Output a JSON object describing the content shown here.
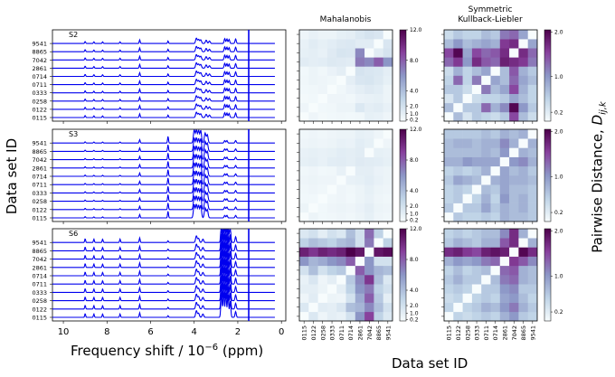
{
  "chart_data": {
    "type": "heatmap",
    "labels": {
      "ylabel_left": "Data set ID",
      "xlabel_bottom_left": "Frequency shift / 10",
      "xlabel_exp": "−6",
      "xlabel_unit": " (ppm)",
      "xlabel_bottom_right": "Data set ID",
      "ylabel_right_main": "Pairwise Distance, ",
      "ylabel_right_sym": "D",
      "ylabel_right_sub": "ij,k",
      "col_title_1": "Mahalanobis",
      "col_title_2a": "Symmetric",
      "col_title_2b": "Kullback-Liebler"
    },
    "dataset_ids": [
      "0115",
      "0122",
      "0258",
      "0333",
      "0711",
      "0714",
      "2861",
      "7042",
      "8865",
      "9541"
    ],
    "spectra": {
      "xlim": [
        10.5,
        -0.2
      ],
      "xticks": [
        10,
        8,
        6,
        4,
        2,
        0
      ],
      "panels": [
        {
          "name": "S2",
          "marker": 1.5,
          "peaks": [
            {
              "c": 9.0,
              "w": 0.03,
              "h": 0.25
            },
            {
              "c": 8.6,
              "w": 0.03,
              "h": 0.2
            },
            {
              "c": 8.2,
              "w": 0.03,
              "h": 0.2
            },
            {
              "c": 7.4,
              "w": 0.03,
              "h": 0.2
            },
            {
              "c": 6.5,
              "w": 0.03,
              "h": 0.45
            },
            {
              "c": 5.2,
              "w": 0.03,
              "h": 0.3
            },
            {
              "c": 3.9,
              "w": 0.05,
              "h": 0.65
            },
            {
              "c": 3.8,
              "w": 0.05,
              "h": 0.5
            },
            {
              "c": 3.7,
              "w": 0.05,
              "h": 0.45
            },
            {
              "c": 3.45,
              "w": 0.05,
              "h": 0.4
            },
            {
              "c": 3.3,
              "w": 0.05,
              "h": 0.3
            },
            {
              "c": 2.6,
              "w": 0.04,
              "h": 0.6
            },
            {
              "c": 2.5,
              "w": 0.04,
              "h": 0.55
            },
            {
              "c": 2.4,
              "w": 0.04,
              "h": 0.5
            },
            {
              "c": 2.1,
              "w": 0.04,
              "h": 0.55
            }
          ]
        },
        {
          "name": "S3",
          "marker": 1.5,
          "peaks": [
            {
              "c": 9.0,
              "w": 0.03,
              "h": 0.15
            },
            {
              "c": 8.6,
              "w": 0.03,
              "h": 0.12
            },
            {
              "c": 8.2,
              "w": 0.03,
              "h": 0.12
            },
            {
              "c": 7.4,
              "w": 0.03,
              "h": 0.12
            },
            {
              "c": 6.5,
              "w": 0.03,
              "h": 0.4
            },
            {
              "c": 5.2,
              "w": 0.03,
              "h": 0.8
            },
            {
              "c": 4.0,
              "w": 0.05,
              "h": 1.6
            },
            {
              "c": 3.9,
              "w": 0.05,
              "h": 1.6
            },
            {
              "c": 3.8,
              "w": 0.05,
              "h": 1.5
            },
            {
              "c": 3.7,
              "w": 0.05,
              "h": 1.5
            },
            {
              "c": 3.5,
              "w": 0.05,
              "h": 1.2
            },
            {
              "c": 3.4,
              "w": 0.05,
              "h": 1.0
            },
            {
              "c": 2.6,
              "w": 0.04,
              "h": 0.3
            },
            {
              "c": 2.5,
              "w": 0.04,
              "h": 0.3
            },
            {
              "c": 2.1,
              "w": 0.04,
              "h": 0.3
            }
          ]
        },
        {
          "name": "S6",
          "marker": 1.5,
          "peaks": [
            {
              "c": 9.0,
              "w": 0.03,
              "h": 0.45
            },
            {
              "c": 8.6,
              "w": 0.03,
              "h": 0.4
            },
            {
              "c": 8.2,
              "w": 0.03,
              "h": 0.4
            },
            {
              "c": 7.4,
              "w": 0.03,
              "h": 0.4
            },
            {
              "c": 6.5,
              "w": 0.03,
              "h": 0.55
            },
            {
              "c": 5.2,
              "w": 0.03,
              "h": 0.2
            },
            {
              "c": 3.9,
              "w": 0.05,
              "h": 0.8
            },
            {
              "c": 3.8,
              "w": 0.05,
              "h": 0.5
            },
            {
              "c": 3.6,
              "w": 0.05,
              "h": 0.4
            },
            {
              "c": 2.75,
              "w": 0.04,
              "h": 3.0
            },
            {
              "c": 2.65,
              "w": 0.04,
              "h": 3.0
            },
            {
              "c": 2.55,
              "w": 0.04,
              "h": 3.0
            },
            {
              "c": 2.45,
              "w": 0.04,
              "h": 2.8
            },
            {
              "c": 2.35,
              "w": 0.04,
              "h": 2.0
            },
            {
              "c": 2.1,
              "w": 0.04,
              "h": 0.7
            }
          ]
        }
      ]
    },
    "colorbars": {
      "mahalanobis": {
        "min": 0.2,
        "max": 12.0,
        "ticks": [
          0.2,
          1.0,
          2.0,
          4.0,
          8.0,
          12.0
        ],
        "tick_labels": [
          "0.2",
          "1.0",
          "2.0",
          "4.0",
          "8.0",
          "12.0"
        ]
      },
      "skl": {
        "min": 0.2,
        "max": 2.05,
        "ticks": [
          0.2,
          1.0,
          2.0
        ],
        "tick_labels": [
          "0.2",
          "1.0",
          "2.0"
        ]
      }
    },
    "colormap": [
      "#f7fcfd",
      "#bfd3e6",
      "#8c96c6",
      "#88419d",
      "#4d004b"
    ],
    "heatmaps": [
      {
        "row": "S2",
        "metric": "Mahalanobis",
        "matrix": [
          [
            0.0,
            0.5,
            0.2,
            0.3,
            0.4,
            0.3,
            0.4,
            0.9,
            0.8,
            0.5
          ],
          [
            0.5,
            0.0,
            0.3,
            0.4,
            0.6,
            0.6,
            1.5,
            1.0,
            1.2,
            0.8
          ],
          [
            0.2,
            0.3,
            0.0,
            0.5,
            0.5,
            0.4,
            0.7,
            0.8,
            0.9,
            0.6
          ],
          [
            0.3,
            0.4,
            0.5,
            0.0,
            0.4,
            0.7,
            1.0,
            1.3,
            1.1,
            0.6
          ],
          [
            0.4,
            0.6,
            0.5,
            0.4,
            0.0,
            1.0,
            1.6,
            1.7,
            1.4,
            0.9
          ],
          [
            0.3,
            0.6,
            0.4,
            0.7,
            1.0,
            0.0,
            1.8,
            1.6,
            1.5,
            1.0
          ],
          [
            1.2,
            1.0,
            1.1,
            1.4,
            1.3,
            1.2,
            7.0,
            6.5,
            8.0,
            6.0
          ],
          [
            0.9,
            1.0,
            0.8,
            1.3,
            1.7,
            1.6,
            6.5,
            0.0,
            1.2,
            1.8
          ],
          [
            0.8,
            1.2,
            0.9,
            1.1,
            1.4,
            1.5,
            1.2,
            1.2,
            0.0,
            1.6
          ],
          [
            0.5,
            0.8,
            0.6,
            0.6,
            0.9,
            1.0,
            1.5,
            1.8,
            1.6,
            0.0
          ]
        ]
      },
      {
        "row": "S2",
        "metric": "Symmetric Kullback-Liebler",
        "matrix": [
          [
            0.0,
            0.7,
            0.3,
            0.6,
            0.5,
            0.4,
            0.6,
            1.5,
            0.7,
            0.4
          ],
          [
            0.7,
            0.0,
            0.6,
            0.6,
            1.3,
            0.8,
            1.1,
            2.0,
            1.0,
            0.6
          ],
          [
            0.3,
            0.6,
            0.0,
            0.4,
            0.5,
            0.5,
            0.6,
            0.9,
            0.7,
            0.5
          ],
          [
            0.6,
            0.6,
            0.4,
            0.0,
            1.2,
            0.7,
            0.9,
            1.5,
            0.8,
            0.5
          ],
          [
            0.5,
            1.3,
            0.5,
            1.2,
            0.0,
            0.9,
            0.7,
            1.3,
            0.9,
            0.7
          ],
          [
            0.4,
            0.8,
            0.5,
            0.7,
            0.9,
            0.0,
            0.7,
            1.4,
            0.8,
            0.6
          ],
          [
            1.3,
            1.6,
            1.0,
            1.7,
            1.4,
            1.3,
            1.8,
            1.7,
            1.6,
            1.2
          ],
          [
            1.5,
            2.0,
            0.9,
            1.5,
            1.3,
            1.4,
            1.7,
            0.0,
            1.7,
            1.3
          ],
          [
            0.7,
            1.0,
            0.7,
            0.8,
            0.9,
            0.8,
            1.6,
            1.7,
            0.0,
            0.9
          ],
          [
            0.4,
            0.6,
            0.5,
            0.5,
            0.7,
            0.6,
            1.2,
            1.3,
            0.9,
            0.0
          ]
        ]
      },
      {
        "row": "S3",
        "metric": "Mahalanobis",
        "matrix": [
          [
            0.0,
            0.6,
            0.3,
            0.4,
            0.5,
            0.4,
            0.6,
            0.9,
            0.5,
            0.4
          ],
          [
            0.6,
            0.0,
            0.3,
            0.5,
            0.6,
            0.5,
            0.7,
            1.0,
            0.6,
            0.5
          ],
          [
            0.3,
            0.3,
            0.0,
            0.4,
            0.5,
            0.3,
            0.6,
            0.8,
            0.5,
            0.4
          ],
          [
            0.4,
            0.5,
            0.4,
            0.0,
            0.5,
            0.4,
            0.6,
            0.9,
            0.6,
            0.5
          ],
          [
            0.5,
            0.6,
            0.5,
            0.5,
            0.0,
            0.8,
            0.9,
            1.1,
            0.8,
            0.6
          ],
          [
            0.4,
            0.5,
            0.3,
            0.4,
            0.8,
            0.0,
            1.0,
            1.0,
            0.7,
            0.6
          ],
          [
            0.9,
            1.0,
            0.8,
            1.1,
            1.2,
            1.0,
            1.3,
            1.2,
            1.1,
            0.9
          ],
          [
            0.8,
            0.9,
            0.8,
            0.9,
            1.1,
            1.0,
            1.2,
            0.0,
            0.9,
            0.8
          ],
          [
            0.5,
            0.6,
            0.5,
            0.6,
            0.8,
            0.7,
            1.1,
            0.9,
            0.0,
            0.5
          ],
          [
            0.4,
            0.5,
            0.4,
            0.5,
            0.6,
            0.6,
            0.9,
            0.8,
            0.5,
            0.0
          ]
        ]
      },
      {
        "row": "S3",
        "metric": "Symmetric Kullback-Liebler",
        "matrix": [
          [
            0.0,
            0.6,
            0.5,
            0.5,
            0.6,
            0.5,
            0.8,
            0.7,
            0.7,
            0.6
          ],
          [
            0.6,
            0.0,
            0.6,
            0.6,
            0.9,
            0.6,
            0.8,
            0.7,
            0.8,
            0.6
          ],
          [
            0.5,
            0.6,
            0.0,
            0.5,
            0.8,
            0.5,
            1.0,
            0.7,
            0.8,
            0.6
          ],
          [
            0.5,
            0.6,
            0.5,
            0.0,
            0.7,
            0.6,
            0.9,
            0.7,
            0.7,
            0.6
          ],
          [
            0.6,
            0.9,
            0.8,
            0.7,
            0.0,
            0.8,
            0.9,
            0.8,
            0.8,
            0.7
          ],
          [
            0.5,
            0.6,
            0.5,
            0.6,
            0.8,
            0.0,
            0.9,
            0.7,
            0.8,
            0.6
          ],
          [
            0.8,
            0.8,
            1.0,
            0.9,
            0.9,
            0.9,
            0.0,
            1.0,
            1.1,
            0.8
          ],
          [
            0.7,
            0.7,
            0.7,
            0.7,
            0.8,
            0.7,
            1.0,
            0.0,
            0.8,
            0.7
          ],
          [
            0.7,
            0.8,
            0.8,
            0.7,
            0.8,
            0.8,
            1.1,
            0.8,
            0.0,
            0.8
          ],
          [
            0.6,
            0.6,
            0.6,
            0.6,
            0.7,
            0.6,
            0.8,
            0.7,
            0.8,
            0.0
          ]
        ]
      },
      {
        "row": "S6",
        "metric": "Mahalanobis",
        "matrix": [
          [
            0.0,
            1.5,
            0.5,
            1.0,
            0.8,
            2.0,
            6.0,
            9.0,
            3.0,
            1.5
          ],
          [
            1.5,
            0.0,
            1.2,
            1.0,
            1.6,
            4.0,
            4.5,
            6.5,
            4.0,
            2.0
          ],
          [
            0.5,
            1.2,
            0.0,
            0.6,
            0.5,
            2.0,
            5.0,
            8.0,
            3.5,
            1.0
          ],
          [
            1.0,
            1.0,
            0.6,
            0.0,
            1.0,
            3.0,
            6.0,
            7.0,
            3.0,
            2.0
          ],
          [
            0.8,
            1.6,
            0.5,
            1.0,
            0.0,
            3.5,
            6.5,
            9.5,
            4.0,
            1.5
          ],
          [
            2.0,
            4.0,
            2.0,
            3.0,
            3.5,
            0.0,
            8.0,
            6.0,
            4.5,
            4.0
          ],
          [
            6.0,
            4.5,
            5.0,
            6.0,
            6.5,
            8.0,
            0.0,
            6.0,
            2.0,
            2.0
          ],
          [
            10.5,
            9.5,
            10.5,
            10.0,
            10.5,
            12.0,
            11.0,
            0.0,
            11.0,
            11.5
          ],
          [
            3.0,
            4.0,
            3.5,
            3.0,
            4.0,
            4.5,
            2.0,
            7.0,
            0.0,
            3.0
          ],
          [
            1.5,
            2.0,
            1.0,
            2.0,
            1.5,
            4.0,
            2.0,
            7.5,
            3.0,
            0.0
          ]
        ]
      },
      {
        "row": "S6",
        "metric": "Symmetric Kullback-Liebler",
        "matrix": [
          [
            0.0,
            0.5,
            0.4,
            0.5,
            0.6,
            0.5,
            0.8,
            1.0,
            0.6,
            0.5
          ],
          [
            0.5,
            0.0,
            0.5,
            0.6,
            0.8,
            0.7,
            1.0,
            1.2,
            0.8,
            0.6
          ],
          [
            0.4,
            0.5,
            0.0,
            0.5,
            0.6,
            0.5,
            0.9,
            1.0,
            0.7,
            0.5
          ],
          [
            0.5,
            0.6,
            0.5,
            0.0,
            0.6,
            0.6,
            1.0,
            1.1,
            0.6,
            0.6
          ],
          [
            0.6,
            0.8,
            0.6,
            0.6,
            0.0,
            0.7,
            1.2,
            1.3,
            0.8,
            0.7
          ],
          [
            0.5,
            0.7,
            0.5,
            0.6,
            0.7,
            0.0,
            1.3,
            1.4,
            0.8,
            0.7
          ],
          [
            0.8,
            1.0,
            0.9,
            1.0,
            1.2,
            1.3,
            0.0,
            1.6,
            1.4,
            1.1
          ],
          [
            1.7,
            1.8,
            1.6,
            1.5,
            1.8,
            1.9,
            1.8,
            0.0,
            2.0,
            1.7
          ],
          [
            0.6,
            0.8,
            0.7,
            0.6,
            0.8,
            0.8,
            1.4,
            1.7,
            0.0,
            0.8
          ],
          [
            0.5,
            0.6,
            0.5,
            0.6,
            0.7,
            0.7,
            1.1,
            1.7,
            0.8,
            0.0
          ]
        ]
      }
    ]
  }
}
